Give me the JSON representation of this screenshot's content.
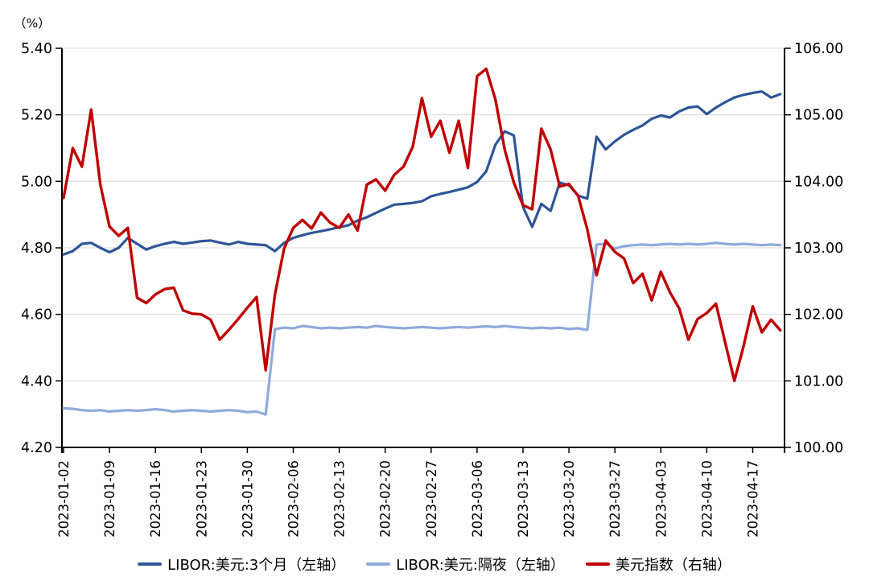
{
  "chart_data": {
    "type": "line",
    "title": "",
    "unit_label": "（%）",
    "grid": "horizontal",
    "legend_position": "bottom",
    "left_axis": {
      "min": 4.2,
      "max": 5.4,
      "ticks": [
        "5.40",
        "5.20",
        "5.00",
        "4.80",
        "4.60",
        "4.40",
        "4.20"
      ]
    },
    "right_axis": {
      "min": 100.0,
      "max": 106.0,
      "ticks": [
        "106.00",
        "105.00",
        "104.00",
        "103.00",
        "102.00",
        "101.00",
        "100.00"
      ]
    },
    "x": [
      "2023-01-02",
      "2023-01-03",
      "2023-01-04",
      "2023-01-05",
      "2023-01-06",
      "2023-01-09",
      "2023-01-10",
      "2023-01-11",
      "2023-01-12",
      "2023-01-13",
      "2023-01-16",
      "2023-01-17",
      "2023-01-18",
      "2023-01-19",
      "2023-01-20",
      "2023-01-23",
      "2023-01-24",
      "2023-01-25",
      "2023-01-26",
      "2023-01-27",
      "2023-01-30",
      "2023-01-31",
      "2023-02-01",
      "2023-02-02",
      "2023-02-03",
      "2023-02-06",
      "2023-02-07",
      "2023-02-08",
      "2023-02-09",
      "2023-02-10",
      "2023-02-13",
      "2023-02-14",
      "2023-02-15",
      "2023-02-16",
      "2023-02-17",
      "2023-02-20",
      "2023-02-21",
      "2023-02-22",
      "2023-02-23",
      "2023-02-24",
      "2023-02-27",
      "2023-02-28",
      "2023-03-01",
      "2023-03-02",
      "2023-03-03",
      "2023-03-06",
      "2023-03-07",
      "2023-03-08",
      "2023-03-09",
      "2023-03-10",
      "2023-03-13",
      "2023-03-14",
      "2023-03-15",
      "2023-03-16",
      "2023-03-17",
      "2023-03-20",
      "2023-03-21",
      "2023-03-22",
      "2023-03-23",
      "2023-03-24",
      "2023-03-27",
      "2023-03-28",
      "2023-03-29",
      "2023-03-30",
      "2023-03-31",
      "2023-04-03",
      "2023-04-04",
      "2023-04-05",
      "2023-04-06",
      "2023-04-07",
      "2023-04-10",
      "2023-04-11",
      "2023-04-12",
      "2023-04-13",
      "2023-04-14",
      "2023-04-17",
      "2023-04-18",
      "2023-04-19",
      "2023-04-20"
    ],
    "x_tick_every": 5,
    "x_tick_labels": [
      "2023-01-02",
      "2023-01-09",
      "2023-01-16",
      "2023-01-23",
      "2023-01-30",
      "2023-02-06",
      "2023-02-13",
      "2023-02-20",
      "2023-02-27",
      "2023-03-06",
      "2023-03-13",
      "2023-03-20",
      "2023-03-27",
      "2023-04-03",
      "2023-04-10",
      "2023-04-17"
    ],
    "series": [
      {
        "name": "LIBOR:美元:3个月（左轴）",
        "axis": "left",
        "color": "#2e5597",
        "values": [
          4.78,
          4.79,
          4.812,
          4.815,
          4.8,
          4.787,
          4.8,
          4.83,
          4.812,
          4.795,
          4.805,
          4.812,
          4.818,
          4.812,
          4.816,
          4.82,
          4.822,
          4.816,
          4.81,
          4.818,
          4.812,
          4.81,
          4.808,
          4.79,
          4.815,
          4.83,
          4.838,
          4.845,
          4.85,
          4.856,
          4.862,
          4.868,
          4.882,
          4.892,
          4.905,
          4.918,
          4.93,
          4.932,
          4.935,
          4.94,
          4.955,
          4.962,
          4.968,
          4.975,
          4.982,
          4.998,
          5.03,
          5.11,
          5.15,
          5.138,
          4.923,
          4.863,
          4.932,
          4.911,
          4.996,
          4.988,
          4.957,
          4.948,
          5.134,
          5.096,
          5.12,
          5.14,
          5.155,
          5.168,
          5.188,
          5.198,
          5.192,
          5.21,
          5.222,
          5.225,
          5.202,
          5.222,
          5.238,
          5.252,
          5.26,
          5.266,
          5.27,
          5.252,
          5.262
        ]
      },
      {
        "name": "LIBOR:美元:隔夜（左轴）",
        "axis": "left",
        "color": "#8faadc",
        "values": [
          4.318,
          4.316,
          4.312,
          4.31,
          4.312,
          4.308,
          4.31,
          4.312,
          4.31,
          4.312,
          4.315,
          4.312,
          4.308,
          4.31,
          4.312,
          4.31,
          4.308,
          4.31,
          4.312,
          4.31,
          4.306,
          4.308,
          4.299,
          4.556,
          4.56,
          4.558,
          4.565,
          4.562,
          4.558,
          4.56,
          4.558,
          4.56,
          4.562,
          4.56,
          4.565,
          4.562,
          4.56,
          4.558,
          4.56,
          4.562,
          4.56,
          4.558,
          4.56,
          4.562,
          4.56,
          4.562,
          4.564,
          4.562,
          4.565,
          4.562,
          4.56,
          4.558,
          4.56,
          4.558,
          4.56,
          4.556,
          4.558,
          4.553,
          4.81,
          4.812,
          4.798,
          4.805,
          4.808,
          4.81,
          4.808,
          4.81,
          4.812,
          4.81,
          4.812,
          4.81,
          4.812,
          4.815,
          4.812,
          4.81,
          4.812,
          4.81,
          4.808,
          4.81,
          4.808
        ]
      },
      {
        "name": "美元指数（右轴）",
        "axis": "right",
        "color": "#c00000",
        "values": [
          103.75,
          104.5,
          104.22,
          105.08,
          103.95,
          103.32,
          103.18,
          103.3,
          102.25,
          102.17,
          102.3,
          102.38,
          102.4,
          102.06,
          102.01,
          102.0,
          101.92,
          101.62,
          101.77,
          101.93,
          102.1,
          102.26,
          101.16,
          102.3,
          102.99,
          103.3,
          103.42,
          103.29,
          103.53,
          103.38,
          103.3,
          103.5,
          103.26,
          103.95,
          104.03,
          103.86,
          104.1,
          104.22,
          104.52,
          105.25,
          104.67,
          104.91,
          104.43,
          104.91,
          104.2,
          105.58,
          105.69,
          105.23,
          104.48,
          103.98,
          103.64,
          103.58,
          104.79,
          104.48,
          103.92,
          103.96,
          103.78,
          103.28,
          102.59,
          103.11,
          102.94,
          102.84,
          102.47,
          102.61,
          102.21,
          102.64,
          102.33,
          102.09,
          101.62,
          101.93,
          102.02,
          102.16,
          101.58,
          101.0,
          101.52,
          102.12,
          101.73,
          101.92,
          101.76
        ]
      }
    ]
  }
}
